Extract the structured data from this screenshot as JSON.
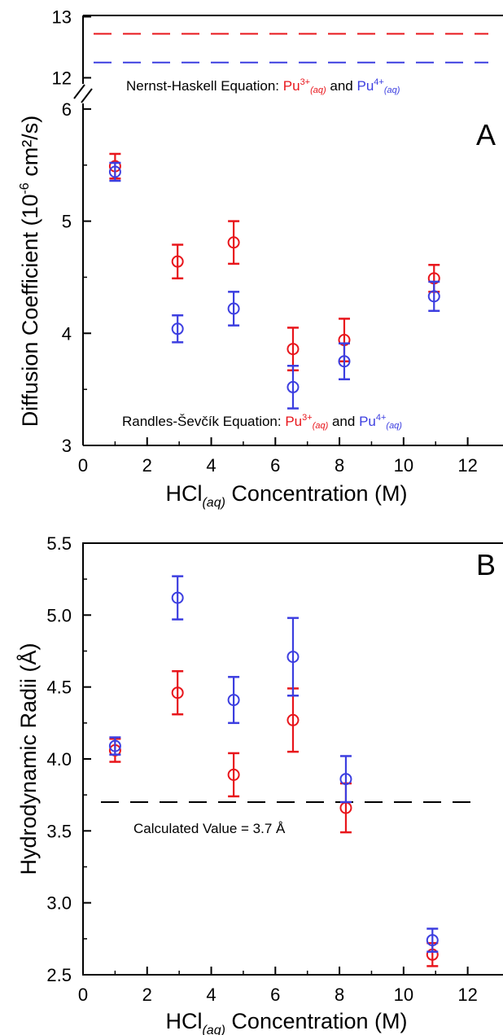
{
  "chart_data": [
    {
      "panel": "A",
      "type": "scatter",
      "panel_label": "A",
      "xlabel": {
        "main": "HCl",
        "sub": "(aq)",
        "rest": " Concentration (M)"
      },
      "ylabel": {
        "pre": "Diffusion Coefficient (10",
        "sup": "-6",
        "post": " cm²/s)"
      },
      "x_ticks": [
        "0",
        "2",
        "4",
        "6",
        "8",
        "10",
        "12"
      ],
      "x_tick_values": [
        0,
        2,
        4,
        6,
        8,
        10,
        12
      ],
      "xlim": [
        0,
        13
      ],
      "y_ticks_lower": [
        "3",
        "4",
        "5",
        "6"
      ],
      "y_tick_values_lower": [
        3,
        4,
        5,
        6
      ],
      "ylim_lower": [
        3,
        6.05
      ],
      "y_ticks_upper": [
        "12",
        "13"
      ],
      "y_tick_values_upper": [
        12,
        13
      ],
      "ylim_upper": [
        11.9,
        13.02
      ],
      "axis_break": true,
      "colors": {
        "pu3": "#e8151b",
        "pu4": "#3c3ee0"
      },
      "series": [
        {
          "name": "Pu3+(aq)",
          "color": "#e8151b",
          "x": [
            1.0,
            2.95,
            4.7,
            6.55,
            8.15,
            10.95
          ],
          "y": [
            5.49,
            4.64,
            4.81,
            3.86,
            3.94,
            4.49
          ],
          "err": [
            0.11,
            0.15,
            0.19,
            0.19,
            0.19,
            0.12
          ]
        },
        {
          "name": "Pu4+(aq)",
          "color": "#3c3ee0",
          "x": [
            1.0,
            2.95,
            4.7,
            6.55,
            8.15,
            10.95
          ],
          "y": [
            5.44,
            4.04,
            4.22,
            3.52,
            3.75,
            4.33
          ],
          "err": [
            0.08,
            0.12,
            0.15,
            0.19,
            0.16,
            0.13
          ]
        }
      ],
      "reference_lines": [
        {
          "y": 12.72,
          "color": "#e8151b"
        },
        {
          "y": 12.25,
          "color": "#3c3ee0"
        }
      ],
      "annotations": {
        "nernst": {
          "prefix": "Nernst-Haskell Equation: ",
          "ion1": "Pu",
          "ion1_sup": "3+",
          "ion1_sub": "(aq)",
          "joiner": " and ",
          "ion2": "Pu",
          "ion2_sup": "4+",
          "ion2_sub": "(aq)"
        },
        "randles": {
          "prefix": "Randles-Ševčík Equation: ",
          "ion1": "Pu",
          "ion1_sup": "3+",
          "ion1_sub": "(aq)",
          "joiner": " and ",
          "ion2": "Pu",
          "ion2_sup": "4+",
          "ion2_sub": "(aq)"
        }
      }
    },
    {
      "panel": "B",
      "type": "scatter",
      "panel_label": "B",
      "xlabel": {
        "main": "HCl",
        "sub": "(aq)",
        "rest": " Concentration (M)"
      },
      "ylabel": {
        "text": "Hydrodynamic Radii (Å)"
      },
      "x_ticks": [
        "0",
        "2",
        "4",
        "6",
        "8",
        "10",
        "12"
      ],
      "x_tick_values": [
        0,
        2,
        4,
        6,
        8,
        10,
        12
      ],
      "xlim": [
        0,
        13
      ],
      "y_ticks": [
        "2.5",
        "3.0",
        "3.5",
        "4.0",
        "4.5",
        "5.0",
        "5.5"
      ],
      "y_tick_values": [
        2.5,
        3.0,
        3.5,
        4.0,
        4.5,
        5.0,
        5.5
      ],
      "ylim": [
        2.5,
        5.5
      ],
      "series": [
        {
          "name": "Pu3+(aq)",
          "color": "#e8151b",
          "x": [
            1.0,
            2.95,
            4.7,
            6.55,
            8.2,
            10.9
          ],
          "y": [
            4.06,
            4.46,
            3.89,
            4.27,
            3.66,
            2.64
          ],
          "err": [
            0.08,
            0.15,
            0.15,
            0.22,
            0.17,
            0.08
          ]
        },
        {
          "name": "Pu4+(aq)",
          "color": "#3c3ee0",
          "x": [
            1.0,
            2.95,
            4.7,
            6.55,
            8.2,
            10.9
          ],
          "y": [
            4.09,
            5.12,
            4.41,
            4.71,
            3.86,
            2.74
          ],
          "err": [
            0.06,
            0.15,
            0.16,
            0.27,
            0.16,
            0.08
          ]
        }
      ],
      "reference_lines": [
        {
          "y": 3.7,
          "color": "#000000"
        }
      ],
      "annotation": "Calculated Value = 3.7 Å"
    }
  ]
}
